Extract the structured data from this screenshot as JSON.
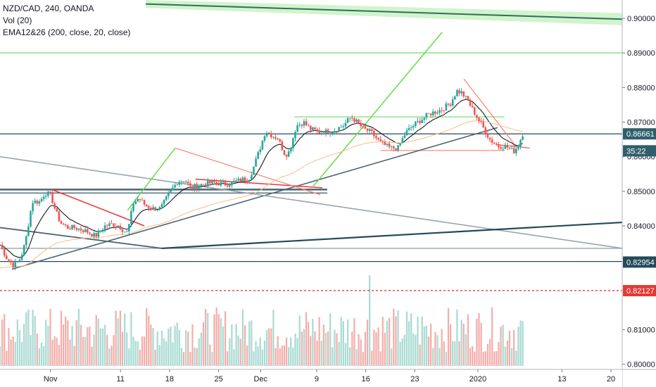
{
  "legend": {
    "symbol_line": "NZD/CAD, 240, OANDA",
    "volume_line": "Vol (20)",
    "ema_line": "EMA12&26 (200, close, 20, close)"
  },
  "chart_data": {
    "type": "candlestick",
    "symbol": "NZD/CAD",
    "interval": "240",
    "source": "OANDA",
    "ylim": [
      0.7985,
      0.9053
    ],
    "y_ticks": [
      "0.90000",
      "0.89000",
      "0.88000",
      "0.87000",
      "0.86000",
      "0.85000",
      "0.84000",
      "0.81000",
      "0.80000"
    ],
    "x_ticks": [
      {
        "label": "Nov",
        "day": 0
      },
      {
        "label": "11",
        "day": 10
      },
      {
        "label": "18",
        "day": 17
      },
      {
        "label": "25",
        "day": 24
      },
      {
        "label": "Dec",
        "day": 30
      },
      {
        "label": "9",
        "day": 38
      },
      {
        "label": "16",
        "day": 45
      },
      {
        "label": "23",
        "day": 52
      },
      {
        "label": "2020",
        "day": 61
      },
      {
        "label": "13",
        "day": 73
      },
      {
        "label": "20",
        "day": 80
      }
    ],
    "xlim_days": [
      -7.2,
      81.6
    ],
    "price_tags": [
      {
        "value": "0.86661",
        "price": 0.8666,
        "color": "#2f5f6b"
      },
      {
        "value": "35:22",
        "price": 0.8617,
        "color": "#2f5f6b"
      },
      {
        "value": "0.82954",
        "price": 0.82954,
        "color": "#234a5a"
      },
      {
        "value": "0.82127",
        "price": 0.82127,
        "color": "#e53935"
      }
    ],
    "close_anchors": [
      {
        "day": -7.2,
        "price": 0.8345
      },
      {
        "day": -6.2,
        "price": 0.8305
      },
      {
        "day": -5.2,
        "price": 0.8285
      },
      {
        "day": -4.3,
        "price": 0.8305
      },
      {
        "day": -3.6,
        "price": 0.835
      },
      {
        "day": -2.6,
        "price": 0.847
      },
      {
        "day": -1.5,
        "price": 0.847
      },
      {
        "day": -0.8,
        "price": 0.8495
      },
      {
        "day": 0.0,
        "price": 0.849
      },
      {
        "day": 0.7,
        "price": 0.8445
      },
      {
        "day": 1.4,
        "price": 0.841
      },
      {
        "day": 2.4,
        "price": 0.8395
      },
      {
        "day": 3.4,
        "price": 0.8395
      },
      {
        "day": 5.1,
        "price": 0.8385
      },
      {
        "day": 6.4,
        "price": 0.837
      },
      {
        "day": 7.8,
        "price": 0.84
      },
      {
        "day": 8.8,
        "price": 0.8405
      },
      {
        "day": 9.8,
        "price": 0.84
      },
      {
        "day": 10.5,
        "price": 0.8385
      },
      {
        "day": 11.0,
        "price": 0.838
      },
      {
        "day": 11.8,
        "price": 0.8465
      },
      {
        "day": 12.6,
        "price": 0.848
      },
      {
        "day": 13.5,
        "price": 0.846
      },
      {
        "day": 14.6,
        "price": 0.845
      },
      {
        "day": 15.7,
        "price": 0.845
      },
      {
        "day": 17.0,
        "price": 0.8495
      },
      {
        "day": 18.2,
        "price": 0.853
      },
      {
        "day": 19.3,
        "price": 0.853
      },
      {
        "day": 20.0,
        "price": 0.851
      },
      {
        "day": 21.6,
        "price": 0.852
      },
      {
        "day": 23.4,
        "price": 0.8525
      },
      {
        "day": 25.1,
        "price": 0.852
      },
      {
        "day": 26.8,
        "price": 0.853
      },
      {
        "day": 28.4,
        "price": 0.854
      },
      {
        "day": 29.0,
        "price": 0.857
      },
      {
        "day": 30.0,
        "price": 0.863
      },
      {
        "day": 30.7,
        "price": 0.8675
      },
      {
        "day": 31.7,
        "price": 0.866
      },
      {
        "day": 32.4,
        "price": 0.8655
      },
      {
        "day": 33.5,
        "price": 0.8605
      },
      {
        "day": 34.1,
        "price": 0.8615
      },
      {
        "day": 35.1,
        "price": 0.869
      },
      {
        "day": 36.1,
        "price": 0.87
      },
      {
        "day": 37.1,
        "price": 0.868
      },
      {
        "day": 38.5,
        "price": 0.867
      },
      {
        "day": 40.3,
        "price": 0.8675
      },
      {
        "day": 41.8,
        "price": 0.869
      },
      {
        "day": 42.9,
        "price": 0.8715
      },
      {
        "day": 44.0,
        "price": 0.8695
      },
      {
        "day": 44.7,
        "price": 0.868
      },
      {
        "day": 45.8,
        "price": 0.867
      },
      {
        "day": 47.1,
        "price": 0.864
      },
      {
        "day": 48.5,
        "price": 0.8625
      },
      {
        "day": 49.6,
        "price": 0.8625
      },
      {
        "day": 50.7,
        "price": 0.867
      },
      {
        "day": 51.8,
        "price": 0.869
      },
      {
        "day": 53.1,
        "price": 0.871
      },
      {
        "day": 54.2,
        "price": 0.8725
      },
      {
        "day": 55.7,
        "price": 0.8735
      },
      {
        "day": 57.1,
        "price": 0.8755
      },
      {
        "day": 58.0,
        "price": 0.879
      },
      {
        "day": 58.7,
        "price": 0.8785
      },
      {
        "day": 59.6,
        "price": 0.876
      },
      {
        "day": 60.7,
        "price": 0.872
      },
      {
        "day": 61.6,
        "price": 0.869
      },
      {
        "day": 62.7,
        "price": 0.865
      },
      {
        "day": 63.9,
        "price": 0.863
      },
      {
        "day": 65.0,
        "price": 0.863
      },
      {
        "day": 66.1,
        "price": 0.8615
      },
      {
        "day": 66.7,
        "price": 0.863
      },
      {
        "day": 67.4,
        "price": 0.8666
      }
    ],
    "volume": {
      "name": "Vol (20)",
      "ylim": [
        0,
        1
      ],
      "level_mean": 0.35,
      "spike_day": 45.6,
      "spike_level": 0.92
    },
    "moving_averages": [
      {
        "name": "EMA 20",
        "color": "#131722",
        "smoothing": 0.16
      },
      {
        "name": "EMA 200",
        "color": "#f6c491",
        "smoothing": 0.03
      }
    ],
    "drawings": {
      "horizontal_lines": [
        {
          "price": 0.89,
          "color": "#7ae07a"
        },
        {
          "price": 0.8666,
          "color": "#234a5a"
        },
        {
          "price": 0.8297,
          "color": "#234a5a"
        },
        {
          "price": 0.8335,
          "color": "#9aa5ab"
        },
        {
          "price": 0.8213,
          "color": "#e53935",
          "dashed": true
        }
      ],
      "segments": [
        {
          "d1": -7.2,
          "p1": 0.8505,
          "d2": 39.5,
          "p2": 0.8505,
          "color": "#4a6572",
          "w": 2.4
        },
        {
          "d1": -7.2,
          "p1": 0.8495,
          "d2": 39.5,
          "p2": 0.8495,
          "color": "#4a6572",
          "w": 1.4
        },
        {
          "d1": 34.8,
          "p1": 0.8715,
          "d2": 64.8,
          "p2": 0.8715,
          "color": "#7ae07a",
          "w": 1.2
        },
        {
          "d1": 47.1,
          "p1": 0.8618,
          "d2": 64.8,
          "p2": 0.8618,
          "color": "#ff7f6e",
          "w": 1.2
        },
        {
          "d1": -5.5,
          "p1": 0.8275,
          "d2": 63.8,
          "p2": 0.8684,
          "color": "#4a6572",
          "w": 1.6
        },
        {
          "d1": -7.2,
          "p1": 0.86,
          "d2": 81.6,
          "p2": 0.8335,
          "color": "#9aa5ab",
          "w": 1.6
        },
        {
          "d1": -7.2,
          "p1": 0.8395,
          "d2": 15.9,
          "p2": 0.8335,
          "color": "#4a6572",
          "w": 1.8
        },
        {
          "d1": 15.9,
          "p1": 0.8335,
          "d2": 81.6,
          "p2": 0.841,
          "color": "#234a5a",
          "w": 2.2
        },
        {
          "d1": 0.2,
          "p1": 0.8505,
          "d2": 13.4,
          "p2": 0.84,
          "color": "#e53935",
          "w": 1.5
        },
        {
          "d1": 20.7,
          "p1": 0.8535,
          "d2": 38.8,
          "p2": 0.851,
          "color": "#e53935",
          "w": 1.5
        },
        {
          "d1": 59.0,
          "p1": 0.8825,
          "d2": 66.5,
          "p2": 0.8628,
          "color": "#ff7f6e",
          "w": 1.2
        },
        {
          "d1": 63.8,
          "p1": 0.8635,
          "d2": 68.4,
          "p2": 0.8625,
          "color": "#e53935",
          "w": 1.0
        },
        {
          "d1": 11.0,
          "p1": 0.8445,
          "d2": 17.8,
          "p2": 0.8625,
          "color": "#66dd44",
          "w": 1.5
        },
        {
          "d1": 17.8,
          "p1": 0.8625,
          "d2": 38.5,
          "p2": 0.849,
          "color": "#ff7f6e",
          "w": 1.2
        },
        {
          "d1": 37.4,
          "p1": 0.8512,
          "d2": 55.9,
          "p2": 0.896,
          "color": "#66dd44",
          "w": 1.5
        }
      ],
      "channel": {
        "d1": 13.6,
        "p1_top": 0.9053,
        "p1_bot": 0.903,
        "d2": 81.6,
        "p2_top": 0.9015,
        "p2_bot": 0.898,
        "fill": "#c9f2c3",
        "line": "#2f6f5f"
      }
    }
  }
}
